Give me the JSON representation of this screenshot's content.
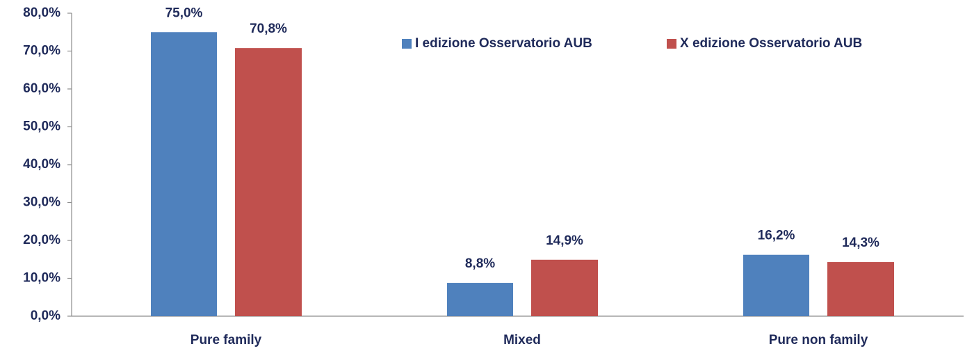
{
  "chart_data": {
    "type": "bar",
    "categories": [
      "Pure family",
      "Mixed",
      "Pure non family"
    ],
    "series": [
      {
        "name": "I edizione Osservatorio AUB",
        "color": "#4f81bd",
        "values": [
          75.0,
          8.8,
          16.2
        ],
        "value_labels": [
          "75,0%",
          "8,8%",
          "16,2%"
        ]
      },
      {
        "name": "X edizione Osservatorio AUB",
        "color": "#c0504d",
        "values": [
          70.8,
          14.9,
          14.3
        ],
        "value_labels": [
          "70,8%",
          "14,9%",
          "14,3%"
        ]
      }
    ],
    "ylim": [
      0,
      80
    ],
    "yticks": [
      {
        "value": 0,
        "label": "0,0%"
      },
      {
        "value": 10,
        "label": "10,0%"
      },
      {
        "value": 20,
        "label": "20,0%"
      },
      {
        "value": 30,
        "label": "30,0%"
      },
      {
        "value": 40,
        "label": "40,0%"
      },
      {
        "value": 50,
        "label": "50,0%"
      },
      {
        "value": 60,
        "label": "60,0%"
      },
      {
        "value": 70,
        "label": "70,0%"
      },
      {
        "value": 80,
        "label": "80,0%"
      }
    ],
    "grid": false,
    "legend": "top-right"
  }
}
